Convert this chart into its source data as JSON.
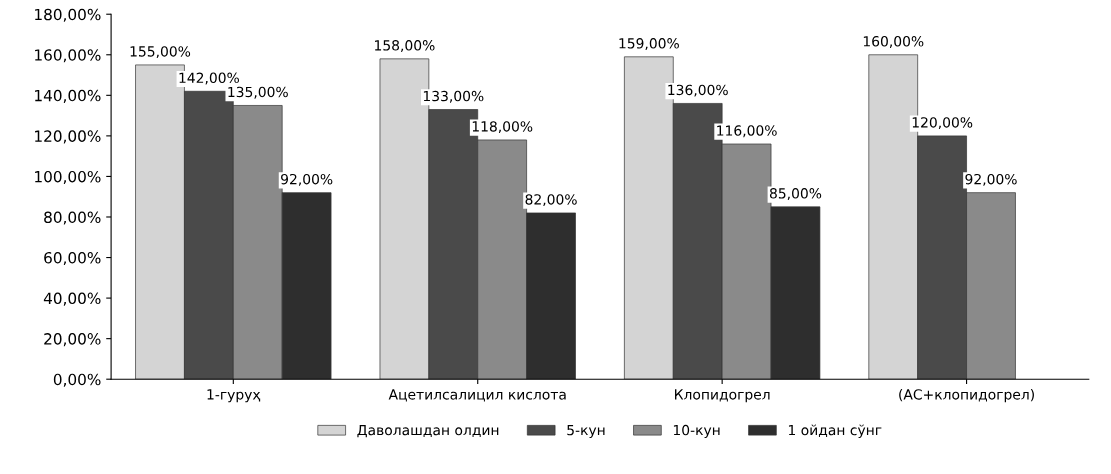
{
  "chart_data": {
    "type": "bar",
    "categories": [
      "1-гуруҳ",
      "Ацетилсалицил кислота",
      "Клопидогрел",
      "(АС+клопидогрел)"
    ],
    "series": [
      {
        "name": "Даволашдан олдин",
        "color": "#d4d4d4",
        "values": [
          155,
          158,
          159,
          160
        ],
        "value_labels": [
          "155,00%",
          "158,00%",
          "159,00%",
          "160,00%"
        ]
      },
      {
        "name": "5-кун",
        "color": "#4a4a4a",
        "values": [
          142,
          133,
          136,
          120
        ],
        "value_labels": [
          "142,00%",
          "133,00%",
          "136,00%",
          "120,00%"
        ]
      },
      {
        "name": "10-кун",
        "color": "#8a8a8a",
        "values": [
          135,
          118,
          116,
          92
        ],
        "value_labels": [
          "135,00%",
          "118,00%",
          "116,00%",
          "92,00%"
        ]
      },
      {
        "name": "1 ойдан сўнг",
        "color": "#2e2e2e",
        "values": [
          92,
          82,
          85,
          null
        ],
        "value_labels": [
          "92,00%",
          "82,00%",
          "85,00%",
          null
        ]
      }
    ],
    "ylim": [
      0,
      180
    ],
    "yticks": [
      {
        "value": 0,
        "label": "0,00%"
      },
      {
        "value": 20,
        "label": "20,00%"
      },
      {
        "value": 40,
        "label": "40,00%"
      },
      {
        "value": 60,
        "label": "60,00%"
      },
      {
        "value": 80,
        "label": "80,00%"
      },
      {
        "value": 100,
        "label": "100,00%"
      },
      {
        "value": 120,
        "label": "120,00%"
      },
      {
        "value": 140,
        "label": "140,00%"
      },
      {
        "value": 160,
        "label": "160,00%"
      },
      {
        "value": 180,
        "label": "180,00%"
      }
    ],
    "legend": "bottom",
    "grid": false
  }
}
